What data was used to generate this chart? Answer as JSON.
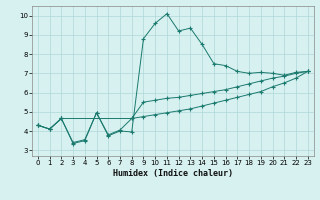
{
  "xlabel": "Humidex (Indice chaleur)",
  "ylabel": "",
  "xlim": [
    -0.5,
    23.5
  ],
  "ylim": [
    2.7,
    10.5
  ],
  "yticks": [
    3,
    4,
    5,
    6,
    7,
    8,
    9,
    10
  ],
  "xticks": [
    0,
    1,
    2,
    3,
    4,
    5,
    6,
    7,
    8,
    9,
    10,
    11,
    12,
    13,
    14,
    15,
    16,
    17,
    18,
    19,
    20,
    21,
    22,
    23
  ],
  "bg_color": "#d7f0f0",
  "grid_color": "#b0d8d8",
  "line_color": "#1a7a6e",
  "line1_x": [
    0,
    1,
    2,
    3,
    4,
    5,
    6,
    7,
    8,
    9,
    10,
    11,
    12,
    13,
    14,
    15,
    16,
    17,
    18,
    19,
    20,
    21,
    22,
    23
  ],
  "line1_y": [
    4.3,
    4.1,
    4.65,
    3.35,
    3.5,
    4.95,
    3.75,
    4.0,
    3.95,
    8.8,
    9.6,
    10.1,
    9.2,
    9.35,
    8.5,
    7.5,
    7.4,
    7.1,
    7.0,
    7.05,
    7.0,
    6.9,
    7.05,
    7.1
  ],
  "line2_x": [
    0,
    1,
    2,
    3,
    4,
    5,
    6,
    7,
    8,
    9,
    10,
    11,
    12,
    13,
    14,
    15,
    16,
    17,
    18,
    19,
    20,
    21,
    22,
    23
  ],
  "line2_y": [
    4.3,
    4.1,
    4.65,
    3.4,
    3.55,
    4.95,
    3.8,
    4.05,
    4.65,
    5.5,
    5.6,
    5.7,
    5.75,
    5.85,
    5.95,
    6.05,
    6.15,
    6.3,
    6.45,
    6.6,
    6.75,
    6.85,
    7.0,
    7.1
  ],
  "line3_x": [
    0,
    1,
    2,
    8,
    9,
    10,
    11,
    12,
    13,
    14,
    15,
    16,
    17,
    18,
    19,
    20,
    21,
    22,
    23
  ],
  "line3_y": [
    4.3,
    4.1,
    4.65,
    4.65,
    4.75,
    4.85,
    4.95,
    5.05,
    5.15,
    5.3,
    5.45,
    5.6,
    5.75,
    5.9,
    6.05,
    6.3,
    6.5,
    6.75,
    7.1
  ]
}
